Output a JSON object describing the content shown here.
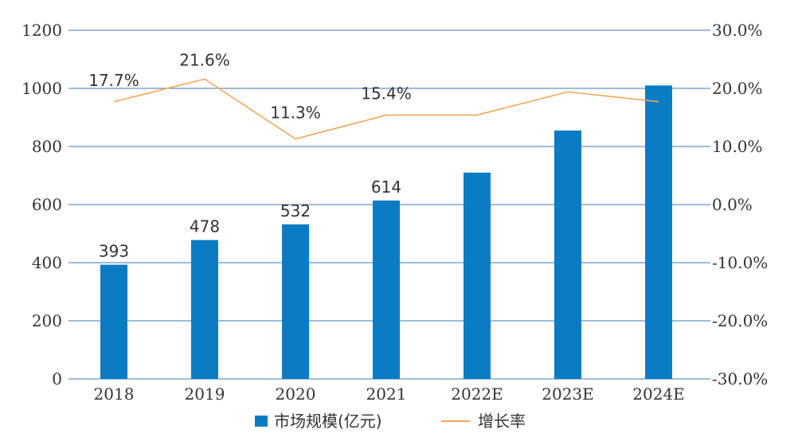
{
  "chart_data": {
    "type": "bar",
    "categories": [
      "2018",
      "2019",
      "2020",
      "2021",
      "2022E",
      "2023E",
      "2024E"
    ],
    "series": [
      {
        "name": "市场规模(亿元)",
        "type": "bar",
        "axis": "left",
        "color": "#0a7cc4",
        "values": [
          393,
          478,
          532,
          614,
          710,
          855,
          1010
        ],
        "data_labels": [
          "393",
          "478",
          "532",
          "614",
          "",
          "",
          ""
        ]
      },
      {
        "name": "增长率",
        "type": "line",
        "axis": "right",
        "color": "#f0a75a",
        "values": [
          17.7,
          21.6,
          11.3,
          15.4,
          15.4,
          19.4,
          17.7
        ],
        "data_labels": [
          "17.7%",
          "21.6%",
          "11.3%",
          "15.4%",
          "",
          "",
          ""
        ]
      }
    ],
    "y_left": {
      "lim": [
        0,
        1200
      ],
      "ticks": [
        "0",
        "200",
        "400",
        "600",
        "800",
        "1000",
        "1200"
      ]
    },
    "y_right": {
      "lim": [
        -30,
        30
      ],
      "ticks": [
        "-30.0%",
        "-20.0%",
        "-10.0%",
        "0.0%",
        "10.0%",
        "20.0%",
        "30.0%"
      ]
    },
    "grid": true,
    "grid_color": "#3c78b4",
    "legend": {
      "position": "bottom",
      "items": [
        "市场规模(亿元)",
        "增长率"
      ]
    }
  }
}
